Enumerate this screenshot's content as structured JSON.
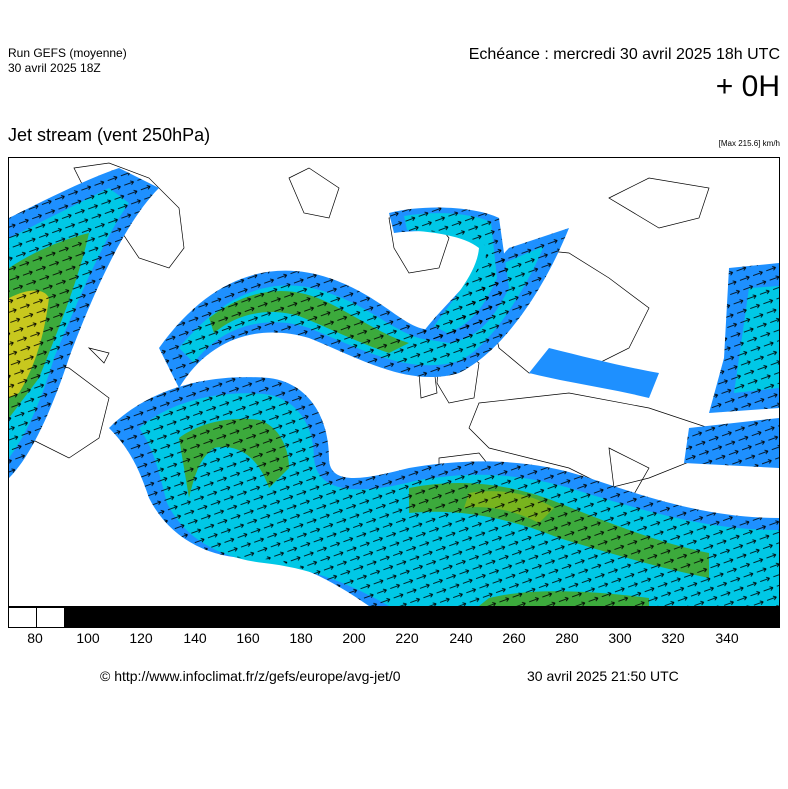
{
  "header": {
    "run_label": "Run GEFS (moyenne)",
    "run_date": "30 avril 2025 18Z",
    "echeance": "Echéance : mercredi 30 avril 2025 18h UTC",
    "lead_time": "+ 0H"
  },
  "map": {
    "title": "Jet stream (vent 250hPa)",
    "max_value": "[Max 215.6] km/h"
  },
  "legend": {
    "ticks": [
      "80",
      "100",
      "120",
      "140",
      "160",
      "180",
      "200",
      "220",
      "240",
      "260",
      "280",
      "300",
      "320",
      "340"
    ],
    "colors": {
      "white": "#ffffff",
      "blue": "#1e90ff",
      "cyan": "#00c8e6",
      "teal": "#00b48c",
      "green": "#3caa3c",
      "olive": "#78b41e",
      "yellow": "#c8c81e",
      "black": "#000000"
    }
  },
  "footer": {
    "credit": "© http://www.infoclimat.fr/z/gefs/europe/avg-jet/0",
    "generated": "30 avril 2025 21:50 UTC"
  }
}
